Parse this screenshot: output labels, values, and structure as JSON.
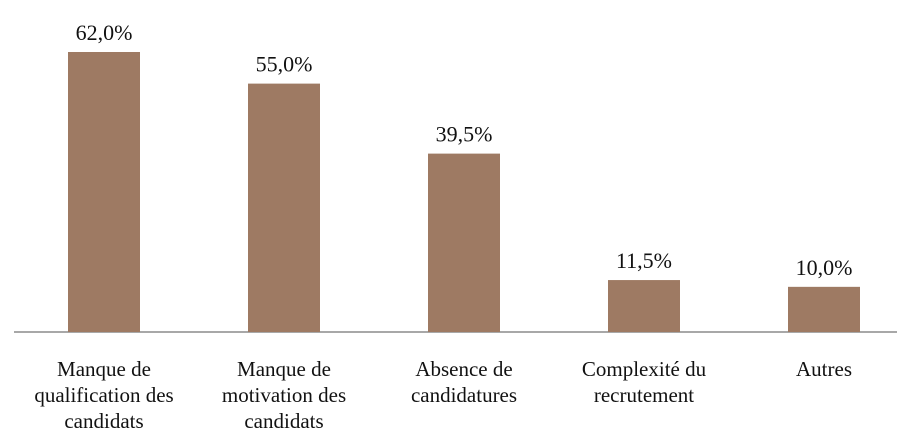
{
  "chart_data": {
    "type": "bar",
    "categories": [
      "Manque de qualification des candidats",
      "Manque de motivation des candidats",
      "Absence de candidatures",
      "Complexité du recrutement",
      "Autres"
    ],
    "values": [
      62,
      55,
      39.5,
      11.5,
      10
    ],
    "value_labels": [
      "62,0%",
      "55,0%",
      "39,5%",
      "11,5%",
      "10,0%"
    ],
    "color": "#9e7a63"
  }
}
